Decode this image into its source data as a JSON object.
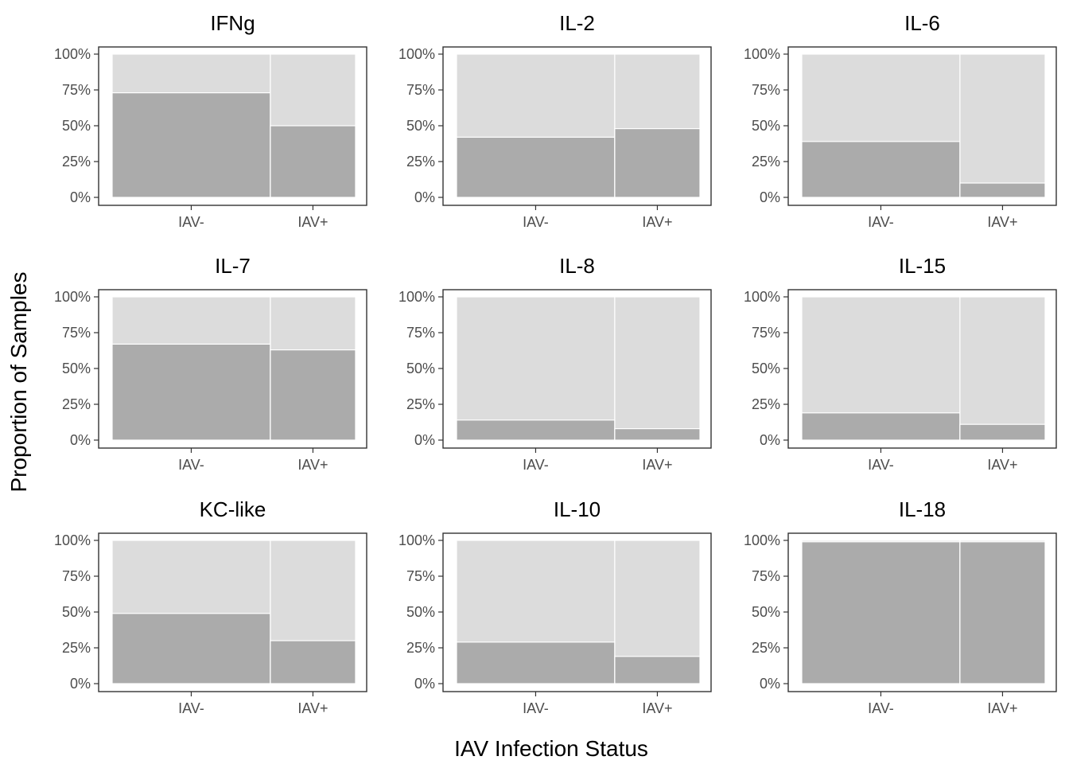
{
  "chart_data": {
    "type": "bar",
    "subtype": "mosaic",
    "xlabel": "IAV Infection Status",
    "ylabel": "Proportion of Samples",
    "categories": [
      "IAV-",
      "IAV+"
    ],
    "category_widths": [
      0.65,
      0.35
    ],
    "yticks": [
      "0%",
      "25%",
      "50%",
      "75%",
      "100%"
    ],
    "ylim": [
      0,
      1
    ],
    "colors": {
      "positive": "#ababab",
      "negative": "#dcdcdc",
      "panel_border": "#333333"
    },
    "grid": false,
    "legend": "none",
    "panels": [
      {
        "title": "IFNg",
        "values": [
          0.73,
          0.5
        ]
      },
      {
        "title": "IL-2",
        "values": [
          0.42,
          0.48
        ]
      },
      {
        "title": "IL-6",
        "values": [
          0.39,
          0.1
        ]
      },
      {
        "title": "IL-7",
        "values": [
          0.67,
          0.63
        ]
      },
      {
        "title": "IL-8",
        "values": [
          0.14,
          0.08
        ]
      },
      {
        "title": "IL-15",
        "values": [
          0.19,
          0.11
        ]
      },
      {
        "title": "KC-like",
        "values": [
          0.49,
          0.3
        ]
      },
      {
        "title": "IL-10",
        "values": [
          0.29,
          0.19
        ]
      },
      {
        "title": "IL-18",
        "values": [
          0.99,
          0.99
        ]
      }
    ]
  }
}
